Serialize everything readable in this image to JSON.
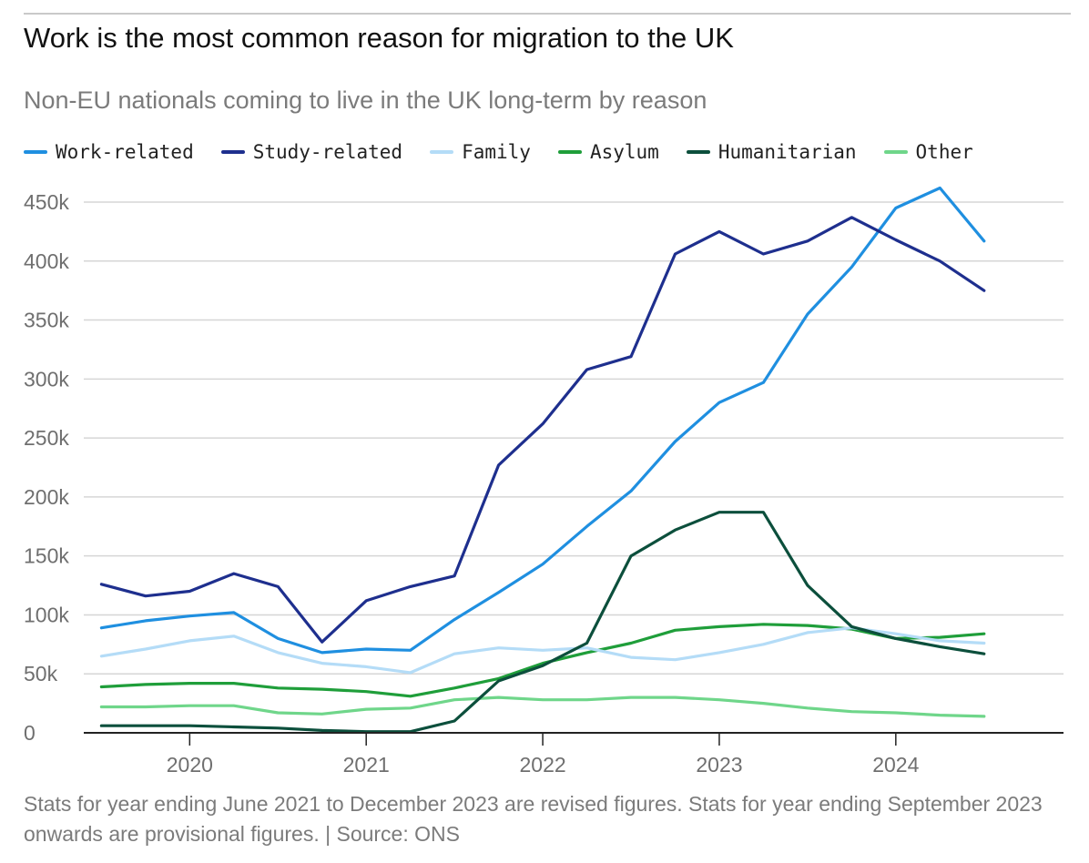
{
  "title": "Work is the most common reason for migration to the UK",
  "subtitle": "Non-EU nationals coming to live in the UK long-term by reason",
  "footnote": "Stats for year ending June 2021 to December 2023 are revised figures. Stats for year ending September 2023 onwards are provisional figures. | Source: ONS",
  "colors": {
    "work": "#1f8fe0",
    "study": "#1e2f8e",
    "family": "#b4dcf7",
    "asylum": "#1f9e3a",
    "humanitarian": "#0c4f3c",
    "other": "#6fd68a",
    "grid": "#d6d6d6",
    "axis": "#222222",
    "tick_text": "#6f6f6f"
  },
  "chart_data": {
    "type": "line",
    "x": [
      2019.5,
      2019.75,
      2020.0,
      2020.25,
      2020.5,
      2020.75,
      2021.0,
      2021.25,
      2021.5,
      2021.75,
      2022.0,
      2022.25,
      2022.5,
      2022.75,
      2023.0,
      2023.25,
      2023.5,
      2023.75,
      2024.0,
      2024.25,
      2024.5
    ],
    "x_ticks": [
      2020,
      2021,
      2022,
      2023,
      2024
    ],
    "x_tick_labels": [
      "2020",
      "2021",
      "2022",
      "2023",
      "2024"
    ],
    "xlim": [
      2019.4,
      2024.95
    ],
    "ylim": [
      0,
      450000
    ],
    "y_ticks": [
      0,
      50000,
      100000,
      150000,
      200000,
      250000,
      300000,
      350000,
      400000,
      450000
    ],
    "y_tick_labels": [
      "0",
      "50k",
      "100k",
      "150k",
      "200k",
      "250k",
      "300k",
      "350k",
      "400k",
      "450k"
    ],
    "xlabel": "",
    "ylabel": "",
    "grid": true,
    "legend_position": "top-left",
    "series": [
      {
        "name": "Work-related",
        "key": "work",
        "values": [
          89000,
          95000,
          99000,
          102000,
          80000,
          68000,
          71000,
          70000,
          96000,
          119000,
          143000,
          175000,
          205000,
          247000,
          280000,
          297000,
          355000,
          395000,
          445000,
          462000,
          417000
        ]
      },
      {
        "name": "Study-related",
        "key": "study",
        "values": [
          126000,
          116000,
          120000,
          135000,
          124000,
          77000,
          112000,
          124000,
          133000,
          227000,
          262000,
          308000,
          319000,
          406000,
          425000,
          406000,
          417000,
          437000,
          418000,
          400000,
          375000
        ]
      },
      {
        "name": "Family",
        "key": "family",
        "values": [
          65000,
          71000,
          78000,
          82000,
          68000,
          59000,
          56000,
          51000,
          67000,
          72000,
          70000,
          72000,
          64000,
          62000,
          68000,
          75000,
          85000,
          89000,
          84000,
          78000,
          76000
        ]
      },
      {
        "name": "Asylum",
        "key": "asylum",
        "values": [
          39000,
          41000,
          42000,
          42000,
          38000,
          37000,
          35000,
          31000,
          38000,
          46000,
          59000,
          68000,
          76000,
          87000,
          90000,
          92000,
          91000,
          88000,
          80000,
          81000,
          84000
        ]
      },
      {
        "name": "Humanitarian",
        "key": "humanitarian",
        "values": [
          6000,
          6000,
          6000,
          5000,
          4000,
          2000,
          1000,
          1000,
          10000,
          44000,
          57000,
          76000,
          150000,
          172000,
          187000,
          187000,
          125000,
          90000,
          80000,
          73000,
          67000
        ]
      },
      {
        "name": "Other",
        "key": "other",
        "values": [
          22000,
          22000,
          23000,
          23000,
          17000,
          16000,
          20000,
          21000,
          28000,
          30000,
          28000,
          28000,
          30000,
          30000,
          28000,
          25000,
          21000,
          18000,
          17000,
          15000,
          14000
        ]
      }
    ]
  }
}
